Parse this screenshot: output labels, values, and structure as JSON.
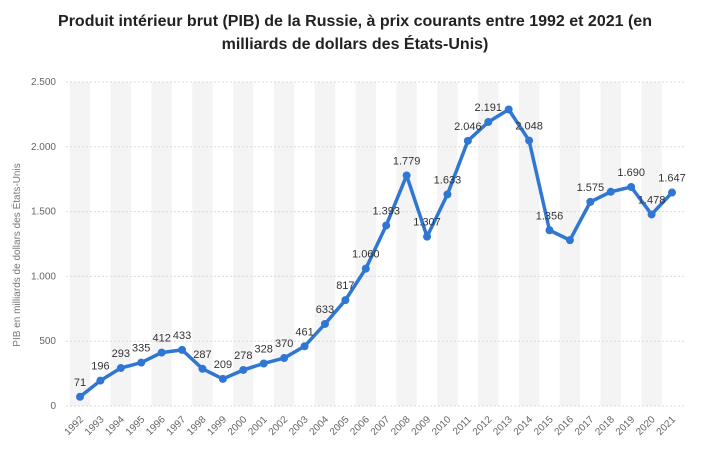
{
  "chart_data": {
    "type": "line",
    "title": "Produit intérieur brut (PIB) de la Russie, à prix courants entre 1992 et 2021 (en milliards de dollars des États-Unis)",
    "ylabel": "PIB en milliards de dollars des États-Unis",
    "xlabel": "",
    "ylim": [
      0,
      2500
    ],
    "yticks": [
      0,
      500,
      1000,
      1500,
      2000,
      2500
    ],
    "ytick_labels": [
      "0",
      "500",
      "1.000",
      "1.500",
      "2.000",
      "2.500"
    ],
    "x": [
      "1992",
      "1993",
      "1994",
      "1995",
      "1996",
      "1997",
      "1998",
      "1999",
      "2000",
      "2001",
      "2002",
      "2003",
      "2004",
      "2005",
      "2006",
      "2007",
      "2008",
      "2009",
      "2010",
      "2011",
      "2012",
      "2013",
      "2014",
      "2015",
      "2016",
      "2017",
      "2018",
      "2019",
      "2020",
      "2021"
    ],
    "values": [
      71,
      196,
      293,
      335,
      412,
      433,
      287,
      209,
      278,
      328,
      370,
      461,
      633,
      817,
      1060,
      1393,
      1779,
      1307,
      1633,
      2046,
      2191,
      2288,
      2048,
      1356,
      1280,
      1575,
      1653,
      1690,
      1478,
      1647
    ],
    "data_labels": [
      "71",
      "196",
      "293",
      "335",
      "412",
      "433",
      "287",
      "209",
      "278",
      "328",
      "370",
      "461",
      "633",
      "817",
      "1.060",
      "1.393",
      "1.779",
      "1.307",
      "1.633",
      "2.046",
      "2.191",
      "",
      "2.048",
      "1.356",
      "",
      "1.575",
      "",
      "1.690",
      "1.478",
      "1.647"
    ],
    "color": "#2f77d2",
    "band_color": "#f4f4f4",
    "grid": true
  }
}
